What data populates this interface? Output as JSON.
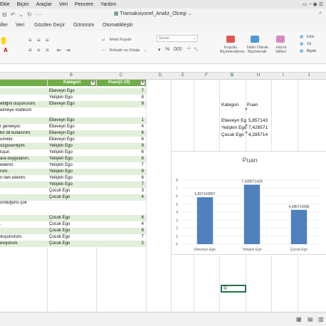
{
  "menubar": [
    "Ekle",
    "Biçim",
    "Araçlar",
    "Veri",
    "Pencere",
    "Yardım"
  ],
  "window": {
    "title": "Transaksiyonel_Analiz_Olcegi"
  },
  "tabs": [
    "iller",
    "Veri",
    "Gözden Geçir",
    "Görünüm",
    "Otomatikleştir"
  ],
  "ribbon": {
    "font_name": "Metni Kaydır",
    "merge": "Birleştir ve Ortala",
    "number_format": "Genel",
    "conditional": [
      "Koşullu",
      "Biçimlendirme"
    ],
    "table": [
      "Tablo Olarak",
      "Biçimlendir"
    ],
    "cellstyles": [
      "Hücre",
      "Stilleri"
    ],
    "insert": "Ekle",
    "delete": "Sil",
    "format": "Biçim",
    "font_color_letter": "A"
  },
  "columns": [
    "B",
    "C",
    "D",
    "E",
    "F",
    "G",
    "H",
    "I",
    "J"
  ],
  "selected_column": "G",
  "table": {
    "headers": {
      "b": "Kategori",
      "c": "Puan(1-10)"
    },
    "rows": [
      {
        "a": "",
        "b": "Ebeveyn Ego",
        "c": "7"
      },
      {
        "a": "",
        "b": "Yetişkin Ego",
        "c": "8"
      },
      {
        "a": "ettiğini düşünürüm.",
        "b": "Ebeveyn Ego",
        "c": "9"
      },
      {
        "a": "etmeye mahkûm",
        "b": "",
        "c": ""
      },
      {
        "a": "",
        "b": "Ebeveyn Ego",
        "c": "1"
      },
      {
        "a": "r gerekiyor.",
        "b": "Ebeveyn Ego",
        "c": "4"
      },
      {
        "a": "bir dil kullanırım.",
        "b": "Ebeveyn Ego",
        "c": "6"
      },
      {
        "a": "umlidir.",
        "b": "Ebeveyn Ego",
        "c": "6"
      },
      {
        "a": "özgüvenliyim.",
        "b": "Yetişkin Ego",
        "c": "9"
      },
      {
        "a": "luşur.",
        "b": "Yetişkin Ego",
        "c": "6"
      },
      {
        "a": "ara duygulanırı.",
        "b": "Yetişkin Ego",
        "c": "6"
      },
      {
        "a": "ederim.",
        "b": "Yetişkin Ego",
        "c": "7"
      },
      {
        "a": "rum.",
        "b": "Yetişkin Ego",
        "c": "9"
      },
      {
        "a": "n fark ederim.",
        "b": "Yetişkin Ego",
        "c": "6"
      },
      {
        "a": "",
        "b": "Yetişkin Ego",
        "c": "7"
      },
      {
        "a": "",
        "b": "Çocuk Ego",
        "c": "3"
      },
      {
        "a": "",
        "b": "Çocuk Ego",
        "c": "4"
      },
      {
        "a": "ündüğünü çok",
        "b": "",
        "c": ""
      },
      {
        "a": "",
        "b": "Çocuk Ego",
        "c": "6"
      },
      {
        "a": ".",
        "b": "Çocuk Ego",
        "c": "4"
      },
      {
        "a": "",
        "b": "Çocuk Ego",
        "c": "6"
      },
      {
        "a": "düşünürüm.",
        "b": "Çocuk Ego",
        "c": "7"
      },
      {
        "a": "eviyorum.",
        "b": "Çocuk Ego",
        "c": "2"
      }
    ]
  },
  "summary": {
    "header": {
      "g": "Kategori",
      "h": "Puan"
    },
    "rows": [
      {
        "g": "Ebeveyn Eg",
        "h": "5,857143"
      },
      {
        "g": "Yetişkin Ego",
        "h": "7,428571"
      },
      {
        "g": "Çocuk Ego",
        "h": "4,285714"
      }
    ]
  },
  "active_cell": {
    "value": "©"
  },
  "chart_data": {
    "type": "bar",
    "title": "Puan",
    "categories": [
      "Ebeveyn Ego",
      "Yetişkin Ego",
      "Çocuk Ego"
    ],
    "values": [
      5.857142857,
      7.428571429,
      4.285714286
    ],
    "data_labels": [
      "5,857142857",
      "7,428571429",
      "4,285714286"
    ],
    "ylim": [
      0,
      8
    ],
    "yticks": [
      "0",
      "1",
      "2",
      "3",
      "4",
      "5",
      "6",
      "7",
      "8"
    ],
    "bar_color": "#4f81bd",
    "legend": "none"
  }
}
